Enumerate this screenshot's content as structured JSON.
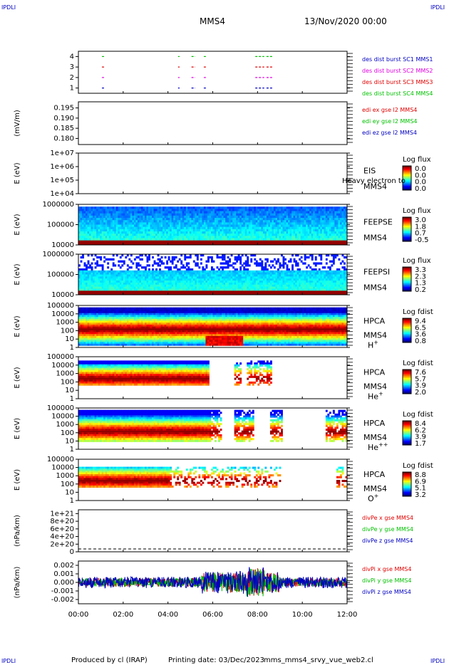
{
  "header": {
    "corner": "IPDLI",
    "spacecraft": "MMS4",
    "date": "13/Nov/2020 00:00"
  },
  "footer": {
    "produced_by": "Produced by cl (IRAP)",
    "printing_date": "Printing date: 03/Dec/2023",
    "file": "mms_mms4_srvy_vue_web2.cl"
  },
  "colors": {
    "red": "#e00000",
    "green": "#00c000",
    "blue": "#0000c0",
    "magenta": "#e000e0"
  },
  "chart_data": [
    {
      "type": "timeline",
      "id": "burst",
      "yticks": [
        "1",
        "2",
        "3",
        "4"
      ],
      "ylim": [
        0.5,
        4.5
      ],
      "legend": [
        {
          "label": "des dist burst SC1 MMS1",
          "color": "#0000c0"
        },
        {
          "label": "des dist burst SC2 MMS2",
          "color": "#e000e0"
        },
        {
          "label": "des dist burst SC3 MMS3",
          "color": "#e00000"
        },
        {
          "label": "des dist burst SC4 MMS4",
          "color": "#00c000"
        }
      ],
      "segments_hours": [
        [
          1.05,
          1.15
        ],
        [
          4.45,
          4.52
        ],
        [
          5.05,
          5.22
        ],
        [
          5.6,
          5.75
        ],
        [
          7.9,
          8.3
        ],
        [
          8.4,
          8.7
        ]
      ]
    },
    {
      "type": "line",
      "id": "edi",
      "ylabel": "(mV/m)",
      "yticks": [
        "0.195",
        "0.190",
        "0.185",
        "0.180"
      ],
      "ylim": [
        0.177,
        0.198
      ],
      "legend": [
        {
          "label": "edi ex gse l2 MMS4",
          "color": "#e00000"
        },
        {
          "label": "edi ey gse l2 MMS4",
          "color": "#00c000"
        },
        {
          "label": "edi ez gse l2 MMS4",
          "color": "#0000c0"
        }
      ]
    },
    {
      "type": "heatmap",
      "id": "eis",
      "ylabel": "E (eV)",
      "yticks": [
        "1e+07",
        "1e+06",
        "1e+05",
        "1e+04"
      ],
      "ylim_log10": [
        4,
        7
      ],
      "instrument": "EIS",
      "sc": "MMS4",
      "overlay": "Heavy electron to",
      "cbar_title": "Log flux",
      "cbar_ticks": [
        "0.0",
        "0.0",
        "0.0",
        "0.0"
      ]
    },
    {
      "type": "heatmap",
      "id": "feepse",
      "ylabel": "E (eV)",
      "yticks": [
        "1000000",
        "100000",
        "10000"
      ],
      "ylim_log10": [
        4,
        6
      ],
      "instrument": "FEEPSE",
      "sc": "MMS4",
      "cbar_title": "Log flux",
      "cbar_ticks": [
        "3.0",
        "1.8",
        "0.7",
        "-0.5"
      ]
    },
    {
      "type": "heatmap",
      "id": "feepsi",
      "ylabel": "E (eV)",
      "yticks": [
        "1000000",
        "100000",
        "10000"
      ],
      "ylim_log10": [
        4,
        6
      ],
      "instrument": "FEEPSI",
      "sc": "MMS4",
      "cbar_title": "Log flux",
      "cbar_ticks": [
        "3.3",
        "2.3",
        "1.3",
        "0.2"
      ]
    },
    {
      "type": "heatmap",
      "id": "hpca_h",
      "ylabel": "E (eV)",
      "yticks": [
        "100000",
        "10000",
        "1000",
        "100",
        "10",
        "1"
      ],
      "ylim_log10": [
        0,
        5
      ],
      "instrument": "HPCA",
      "sc": "MMS4",
      "species": "H",
      "species_sup": "+",
      "cbar_title": "Log fdist",
      "cbar_ticks": [
        "9.4",
        "6.5",
        "3.6",
        "0.8"
      ]
    },
    {
      "type": "heatmap",
      "id": "hpca_he",
      "ylabel": "E (eV)",
      "yticks": [
        "100000",
        "10000",
        "1000",
        "100",
        "10",
        "1"
      ],
      "ylim_log10": [
        0,
        5
      ],
      "instrument": "HPCA",
      "sc": "MMS4",
      "species": "He",
      "species_sup": "+",
      "cbar_title": "Log fdist",
      "cbar_ticks": [
        "7.6",
        "5.7",
        "3.9",
        "2.0"
      ]
    },
    {
      "type": "heatmap",
      "id": "hpca_hepp",
      "ylabel": "E (eV)",
      "yticks": [
        "100000",
        "10000",
        "1000",
        "100",
        "10",
        "1"
      ],
      "ylim_log10": [
        0,
        5
      ],
      "instrument": "HPCA",
      "sc": "MMS4",
      "species": "He",
      "species_sup": "++",
      "cbar_title": "Log fdist",
      "cbar_ticks": [
        "8.4",
        "6.2",
        "3.9",
        "1.7"
      ]
    },
    {
      "type": "heatmap",
      "id": "hpca_o",
      "ylabel": "E (eV)",
      "yticks": [
        "100000",
        "10000",
        "1000",
        "100",
        "10",
        "1"
      ],
      "ylim_log10": [
        0,
        5
      ],
      "instrument": "HPCA",
      "sc": "MMS4",
      "species": "O",
      "species_sup": "+",
      "cbar_title": "Log fdist",
      "cbar_ticks": [
        "8.8",
        "6.9",
        "5.1",
        "3.2"
      ]
    },
    {
      "type": "line",
      "id": "divpe",
      "ylabel": "(nPa/km)",
      "yticks": [
        "1e+21",
        "8e+20",
        "6e+20",
        "4e+20",
        "2e+20",
        "0"
      ],
      "ylim": [
        0,
        1.1e+21
      ],
      "legend": [
        {
          "label": "divPe x gse MMS4",
          "color": "#e00000"
        },
        {
          "label": "divPe y gse MMS4",
          "color": "#00c000"
        },
        {
          "label": "divPe z gse MMS4",
          "color": "#0000c0"
        }
      ]
    },
    {
      "type": "line",
      "id": "divpi",
      "ylabel": "(nPa/km)",
      "yticks": [
        "0.002",
        "0.001",
        "0.000",
        "-0.001",
        "-0.002"
      ],
      "ylim": [
        -0.0025,
        0.0025
      ],
      "legend": [
        {
          "label": "divPi x gse MMS4",
          "color": "#e00000"
        },
        {
          "label": "divPi y gse MMS4",
          "color": "#00c000"
        },
        {
          "label": "divPi z gse MMS4",
          "color": "#0000c0"
        }
      ]
    }
  ],
  "xaxis": {
    "ticks": [
      "00:00",
      "02:00",
      "04:00",
      "06:00",
      "08:00",
      "10:00",
      "12:00"
    ],
    "xlim_hours": [
      0,
      12
    ]
  }
}
